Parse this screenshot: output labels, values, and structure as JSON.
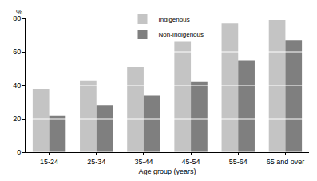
{
  "chart_data": {
    "type": "bar",
    "x_label": "Age group (years)",
    "y_label": "%",
    "categories": [
      "15-24",
      "25-34",
      "35-44",
      "45-54",
      "55-64",
      "65 and over"
    ],
    "series": [
      {
        "name": "Indigenous",
        "color": "#c4c4c4",
        "values": [
          38,
          43,
          51,
          66,
          77,
          79
        ]
      },
      {
        "name": "Non-Indigenous",
        "color": "#7f7f7f",
        "values": [
          22,
          28,
          34,
          42,
          55,
          67
        ]
      }
    ],
    "ylim": [
      0,
      80
    ],
    "yticks": [
      0,
      20,
      40,
      60,
      80
    ],
    "grid": true,
    "legend": "top"
  }
}
